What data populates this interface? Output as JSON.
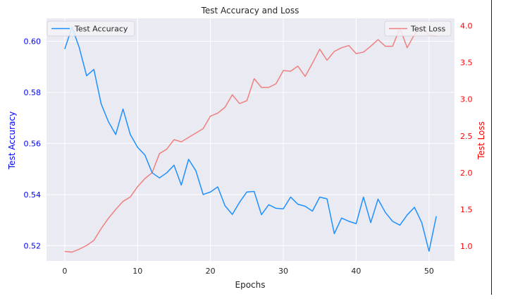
{
  "chart_data": {
    "type": "line",
    "title": "Test Accuracy and Loss",
    "xlabel": "Epochs",
    "xlim": [
      -2.5,
      53.5
    ],
    "x_ticks": [
      0,
      10,
      20,
      30,
      40,
      50
    ],
    "grid": true,
    "background": "#eaeaf2",
    "series": [
      {
        "name": "Test Accuracy",
        "axis": "left",
        "color": "#1e90ff",
        "legend_position": "upper left",
        "ylabel": "Test Accuracy",
        "ylim": [
          0.514,
          0.609
        ],
        "y_ticks": [
          0.52,
          0.54,
          0.56,
          0.58,
          0.6
        ],
        "tick_labels": [
          "0.52",
          "0.54",
          "0.56",
          "0.58",
          "0.60"
        ],
        "values": [
          0.597,
          0.6055,
          0.5975,
          0.5865,
          0.589,
          0.5755,
          0.5685,
          0.5635,
          0.5735,
          0.5635,
          0.5585,
          0.5555,
          0.5485,
          0.5465,
          0.5485,
          0.5515,
          0.5437,
          0.5538,
          0.5493,
          0.54,
          0.541,
          0.543,
          0.5356,
          0.5322,
          0.537,
          0.541,
          0.5412,
          0.5321,
          0.536,
          0.5346,
          0.5344,
          0.539,
          0.5362,
          0.5354,
          0.5335,
          0.539,
          0.5383,
          0.5247,
          0.5308,
          0.5295,
          0.5286,
          0.539,
          0.529,
          0.5382,
          0.533,
          0.5295,
          0.528,
          0.532,
          0.535,
          0.529,
          0.5178,
          0.5315
        ]
      },
      {
        "name": "Test Loss",
        "axis": "right",
        "color": "#f08080",
        "legend_position": "upper right",
        "ylabel": "Test Loss",
        "ylim": [
          0.8,
          4.1
        ],
        "y_ticks": [
          1.0,
          1.5,
          2.0,
          2.5,
          3.0,
          3.5,
          4.0
        ],
        "tick_labels": [
          "1.0",
          "1.5",
          "2.0",
          "2.5",
          "3.0",
          "3.5",
          "4.0"
        ],
        "values": [
          0.93,
          0.92,
          0.96,
          1.01,
          1.08,
          1.24,
          1.38,
          1.5,
          1.61,
          1.67,
          1.81,
          1.92,
          2.0,
          2.26,
          2.32,
          2.45,
          2.42,
          2.48,
          2.54,
          2.6,
          2.77,
          2.81,
          2.89,
          3.06,
          2.94,
          2.98,
          3.28,
          3.16,
          3.16,
          3.21,
          3.39,
          3.38,
          3.45,
          3.31,
          3.49,
          3.68,
          3.53,
          3.65,
          3.7,
          3.73,
          3.62,
          3.64,
          3.72,
          3.81,
          3.72,
          3.72,
          3.97,
          3.7,
          3.88,
          4.0,
          3.87,
          3.86
        ]
      }
    ]
  }
}
